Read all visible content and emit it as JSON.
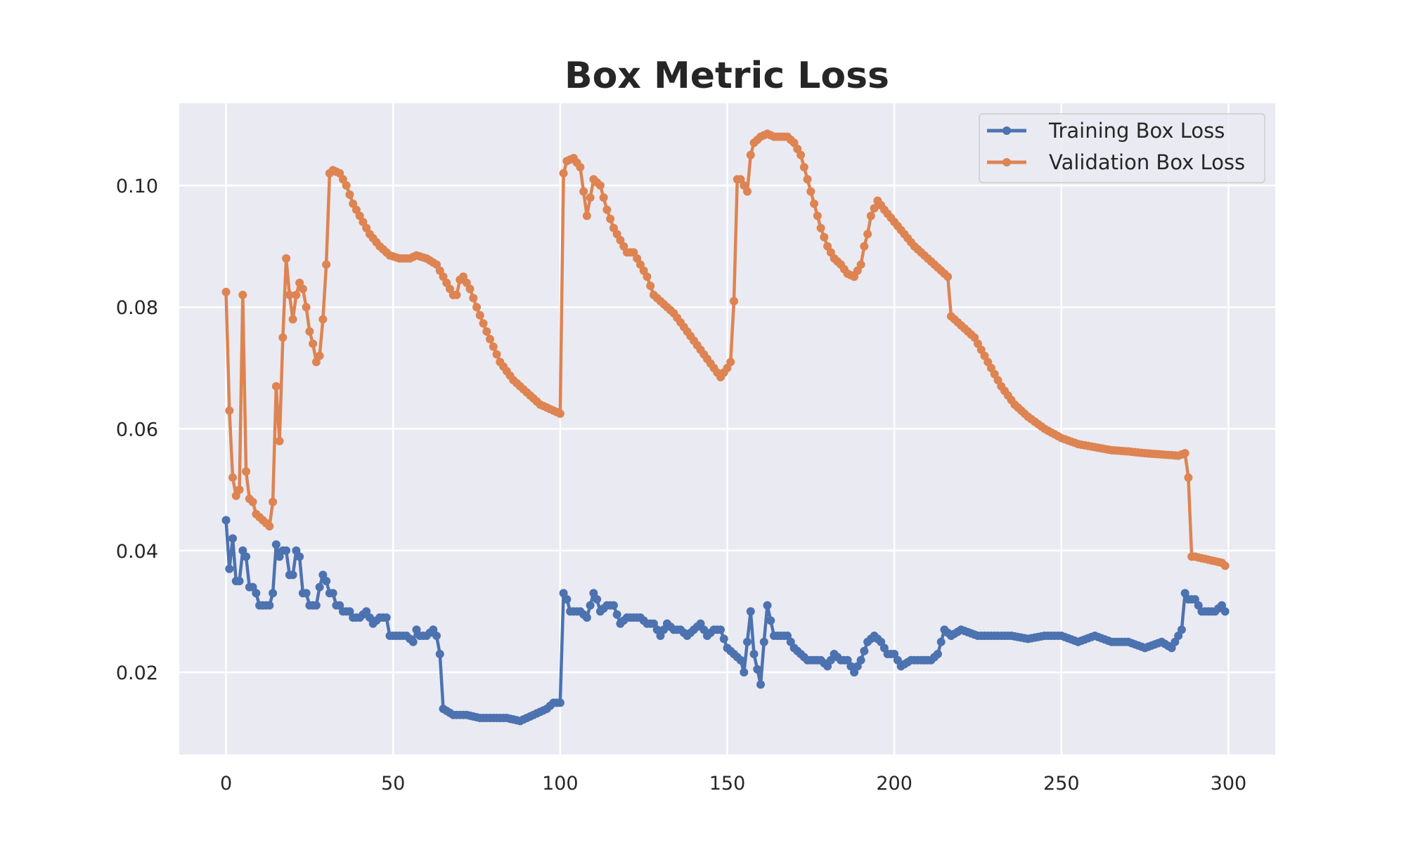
{
  "chart_data": {
    "type": "line",
    "title": "Box Metric Loss",
    "xlabel": "",
    "ylabel": "",
    "xlim": [
      -14,
      314
    ],
    "ylim": [
      0.0065,
      0.1135
    ],
    "xticks": [
      0,
      50,
      100,
      150,
      200,
      250,
      300
    ],
    "yticks": [
      0.02,
      0.04,
      0.06,
      0.08,
      0.1
    ],
    "ytick_labels": [
      "0.02",
      "0.04",
      "0.06",
      "0.08",
      "0.10"
    ],
    "grid": true,
    "legend_position": "top-right",
    "series": [
      {
        "name": "Training Box Loss",
        "color": "#4c72b0",
        "anchors": [
          [
            0,
            0.045
          ],
          [
            1,
            0.037
          ],
          [
            2,
            0.042
          ],
          [
            3,
            0.035
          ],
          [
            4,
            0.035
          ],
          [
            5,
            0.04
          ],
          [
            6,
            0.039
          ],
          [
            7,
            0.034
          ],
          [
            8,
            0.034
          ],
          [
            9,
            0.033
          ],
          [
            10,
            0.031
          ],
          [
            11,
            0.031
          ],
          [
            12,
            0.031
          ],
          [
            13,
            0.031
          ],
          [
            14,
            0.033
          ],
          [
            15,
            0.041
          ],
          [
            16,
            0.039
          ],
          [
            17,
            0.04
          ],
          [
            18,
            0.04
          ],
          [
            19,
            0.036
          ],
          [
            20,
            0.036
          ],
          [
            21,
            0.04
          ],
          [
            22,
            0.039
          ],
          [
            23,
            0.033
          ],
          [
            24,
            0.033
          ],
          [
            25,
            0.031
          ],
          [
            26,
            0.031
          ],
          [
            27,
            0.031
          ],
          [
            28,
            0.034
          ],
          [
            29,
            0.036
          ],
          [
            30,
            0.035
          ],
          [
            31,
            0.033
          ],
          [
            32,
            0.033
          ],
          [
            33,
            0.031
          ],
          [
            34,
            0.031
          ],
          [
            35,
            0.03
          ],
          [
            36,
            0.03
          ],
          [
            37,
            0.03
          ],
          [
            38,
            0.029
          ],
          [
            40,
            0.029
          ],
          [
            42,
            0.03
          ],
          [
            44,
            0.028
          ],
          [
            46,
            0.029
          ],
          [
            48,
            0.029
          ],
          [
            49,
            0.026
          ],
          [
            52,
            0.026
          ],
          [
            54,
            0.026
          ],
          [
            56,
            0.025
          ],
          [
            57,
            0.027
          ],
          [
            58,
            0.026
          ],
          [
            60,
            0.026
          ],
          [
            62,
            0.027
          ],
          [
            63,
            0.026
          ],
          [
            64,
            0.023
          ],
          [
            65,
            0.014
          ],
          [
            68,
            0.013
          ],
          [
            72,
            0.013
          ],
          [
            76,
            0.0125
          ],
          [
            80,
            0.0125
          ],
          [
            84,
            0.0125
          ],
          [
            88,
            0.012
          ],
          [
            92,
            0.013
          ],
          [
            96,
            0.014
          ],
          [
            98,
            0.015
          ],
          [
            100,
            0.015
          ],
          [
            101,
            0.033
          ],
          [
            102,
            0.032
          ],
          [
            103,
            0.03
          ],
          [
            106,
            0.03
          ],
          [
            108,
            0.029
          ],
          [
            110,
            0.033
          ],
          [
            111,
            0.032
          ],
          [
            112,
            0.03
          ],
          [
            114,
            0.031
          ],
          [
            116,
            0.031
          ],
          [
            118,
            0.028
          ],
          [
            120,
            0.029
          ],
          [
            122,
            0.029
          ],
          [
            124,
            0.029
          ],
          [
            126,
            0.028
          ],
          [
            128,
            0.028
          ],
          [
            130,
            0.026
          ],
          [
            132,
            0.028
          ],
          [
            134,
            0.027
          ],
          [
            136,
            0.027
          ],
          [
            138,
            0.026
          ],
          [
            140,
            0.027
          ],
          [
            142,
            0.028
          ],
          [
            144,
            0.026
          ],
          [
            146,
            0.027
          ],
          [
            148,
            0.027
          ],
          [
            150,
            0.024
          ],
          [
            152,
            0.023
          ],
          [
            154,
            0.022
          ],
          [
            155,
            0.02
          ],
          [
            157,
            0.03
          ],
          [
            158,
            0.023
          ],
          [
            160,
            0.018
          ],
          [
            161,
            0.025
          ],
          [
            162,
            0.031
          ],
          [
            164,
            0.026
          ],
          [
            166,
            0.026
          ],
          [
            168,
            0.026
          ],
          [
            170,
            0.024
          ],
          [
            172,
            0.023
          ],
          [
            174,
            0.022
          ],
          [
            176,
            0.022
          ],
          [
            178,
            0.022
          ],
          [
            180,
            0.021
          ],
          [
            182,
            0.023
          ],
          [
            184,
            0.022
          ],
          [
            186,
            0.022
          ],
          [
            188,
            0.02
          ],
          [
            190,
            0.022
          ],
          [
            192,
            0.025
          ],
          [
            194,
            0.026
          ],
          [
            196,
            0.025
          ],
          [
            198,
            0.023
          ],
          [
            200,
            0.023
          ],
          [
            202,
            0.021
          ],
          [
            205,
            0.022
          ],
          [
            208,
            0.022
          ],
          [
            211,
            0.022
          ],
          [
            213,
            0.023
          ],
          [
            215,
            0.027
          ],
          [
            217,
            0.026
          ],
          [
            220,
            0.027
          ],
          [
            225,
            0.026
          ],
          [
            230,
            0.026
          ],
          [
            235,
            0.026
          ],
          [
            240,
            0.0255
          ],
          [
            245,
            0.026
          ],
          [
            250,
            0.026
          ],
          [
            255,
            0.025
          ],
          [
            260,
            0.026
          ],
          [
            265,
            0.025
          ],
          [
            270,
            0.025
          ],
          [
            275,
            0.024
          ],
          [
            280,
            0.025
          ],
          [
            283,
            0.024
          ],
          [
            285,
            0.026
          ],
          [
            286,
            0.027
          ],
          [
            287,
            0.033
          ],
          [
            288,
            0.032
          ],
          [
            290,
            0.032
          ],
          [
            292,
            0.03
          ],
          [
            294,
            0.03
          ],
          [
            296,
            0.03
          ],
          [
            298,
            0.031
          ],
          [
            299,
            0.03
          ]
        ]
      },
      {
        "name": "Validation Box Loss",
        "color": "#dd8452",
        "anchors": [
          [
            0,
            0.0825
          ],
          [
            1,
            0.063
          ],
          [
            2,
            0.052
          ],
          [
            3,
            0.049
          ],
          [
            4,
            0.05
          ],
          [
            5,
            0.082
          ],
          [
            6,
            0.053
          ],
          [
            7,
            0.0485
          ],
          [
            8,
            0.048
          ],
          [
            9,
            0.046
          ],
          [
            11,
            0.045
          ],
          [
            13,
            0.044
          ],
          [
            14,
            0.048
          ],
          [
            15,
            0.067
          ],
          [
            16,
            0.058
          ],
          [
            17,
            0.075
          ],
          [
            18,
            0.088
          ],
          [
            19,
            0.082
          ],
          [
            20,
            0.078
          ],
          [
            21,
            0.082
          ],
          [
            22,
            0.084
          ],
          [
            23,
            0.083
          ],
          [
            24,
            0.08
          ],
          [
            25,
            0.076
          ],
          [
            26,
            0.074
          ],
          [
            27,
            0.071
          ],
          [
            28,
            0.072
          ],
          [
            29,
            0.078
          ],
          [
            30,
            0.087
          ],
          [
            31,
            0.102
          ],
          [
            32,
            0.1025
          ],
          [
            34,
            0.102
          ],
          [
            36,
            0.1
          ],
          [
            38,
            0.097
          ],
          [
            40,
            0.095
          ],
          [
            43,
            0.092
          ],
          [
            46,
            0.09
          ],
          [
            49,
            0.0885
          ],
          [
            52,
            0.088
          ],
          [
            55,
            0.088
          ],
          [
            57,
            0.0885
          ],
          [
            60,
            0.088
          ],
          [
            63,
            0.087
          ],
          [
            65,
            0.085
          ],
          [
            67,
            0.083
          ],
          [
            68,
            0.082
          ],
          [
            69,
            0.082
          ],
          [
            70,
            0.0845
          ],
          [
            71,
            0.085
          ],
          [
            73,
            0.083
          ],
          [
            75,
            0.08
          ],
          [
            78,
            0.076
          ],
          [
            82,
            0.071
          ],
          [
            86,
            0.068
          ],
          [
            90,
            0.066
          ],
          [
            94,
            0.064
          ],
          [
            98,
            0.063
          ],
          [
            100,
            0.0625
          ],
          [
            101,
            0.102
          ],
          [
            102,
            0.104
          ],
          [
            104,
            0.1045
          ],
          [
            106,
            0.103
          ],
          [
            107,
            0.099
          ],
          [
            108,
            0.095
          ],
          [
            109,
            0.098
          ],
          [
            110,
            0.101
          ],
          [
            112,
            0.1
          ],
          [
            114,
            0.096
          ],
          [
            116,
            0.093
          ],
          [
            118,
            0.091
          ],
          [
            120,
            0.089
          ],
          [
            122,
            0.089
          ],
          [
            124,
            0.087
          ],
          [
            126,
            0.085
          ],
          [
            128,
            0.082
          ],
          [
            130,
            0.081
          ],
          [
            134,
            0.079
          ],
          [
            138,
            0.076
          ],
          [
            142,
            0.073
          ],
          [
            146,
            0.07
          ],
          [
            148,
            0.0685
          ],
          [
            150,
            0.07
          ],
          [
            151,
            0.071
          ],
          [
            152,
            0.081
          ],
          [
            153,
            0.101
          ],
          [
            154,
            0.101
          ],
          [
            156,
            0.099
          ],
          [
            157,
            0.105
          ],
          [
            158,
            0.107
          ],
          [
            160,
            0.108
          ],
          [
            162,
            0.1085
          ],
          [
            164,
            0.108
          ],
          [
            168,
            0.108
          ],
          [
            170,
            0.107
          ],
          [
            172,
            0.105
          ],
          [
            174,
            0.101
          ],
          [
            176,
            0.097
          ],
          [
            178,
            0.093
          ],
          [
            180,
            0.09
          ],
          [
            182,
            0.088
          ],
          [
            184,
            0.087
          ],
          [
            186,
            0.0855
          ],
          [
            188,
            0.085
          ],
          [
            190,
            0.087
          ],
          [
            191,
            0.09
          ],
          [
            192,
            0.092
          ],
          [
            193,
            0.095
          ],
          [
            195,
            0.0975
          ],
          [
            197,
            0.096
          ],
          [
            200,
            0.094
          ],
          [
            203,
            0.092
          ],
          [
            206,
            0.09
          ],
          [
            210,
            0.088
          ],
          [
            214,
            0.086
          ],
          [
            216,
            0.085
          ],
          [
            217,
            0.0785
          ],
          [
            220,
            0.077
          ],
          [
            224,
            0.075
          ],
          [
            228,
            0.071
          ],
          [
            232,
            0.067
          ],
          [
            236,
            0.064
          ],
          [
            240,
            0.062
          ],
          [
            245,
            0.06
          ],
          [
            250,
            0.0585
          ],
          [
            255,
            0.0575
          ],
          [
            260,
            0.057
          ],
          [
            265,
            0.0565
          ],
          [
            270,
            0.0563
          ],
          [
            275,
            0.056
          ],
          [
            280,
            0.0558
          ],
          [
            285,
            0.0556
          ],
          [
            287,
            0.056
          ],
          [
            288,
            0.052
          ],
          [
            289,
            0.039
          ],
          [
            290,
            0.039
          ],
          [
            294,
            0.0385
          ],
          [
            298,
            0.038
          ],
          [
            299,
            0.0375
          ]
        ]
      }
    ]
  }
}
